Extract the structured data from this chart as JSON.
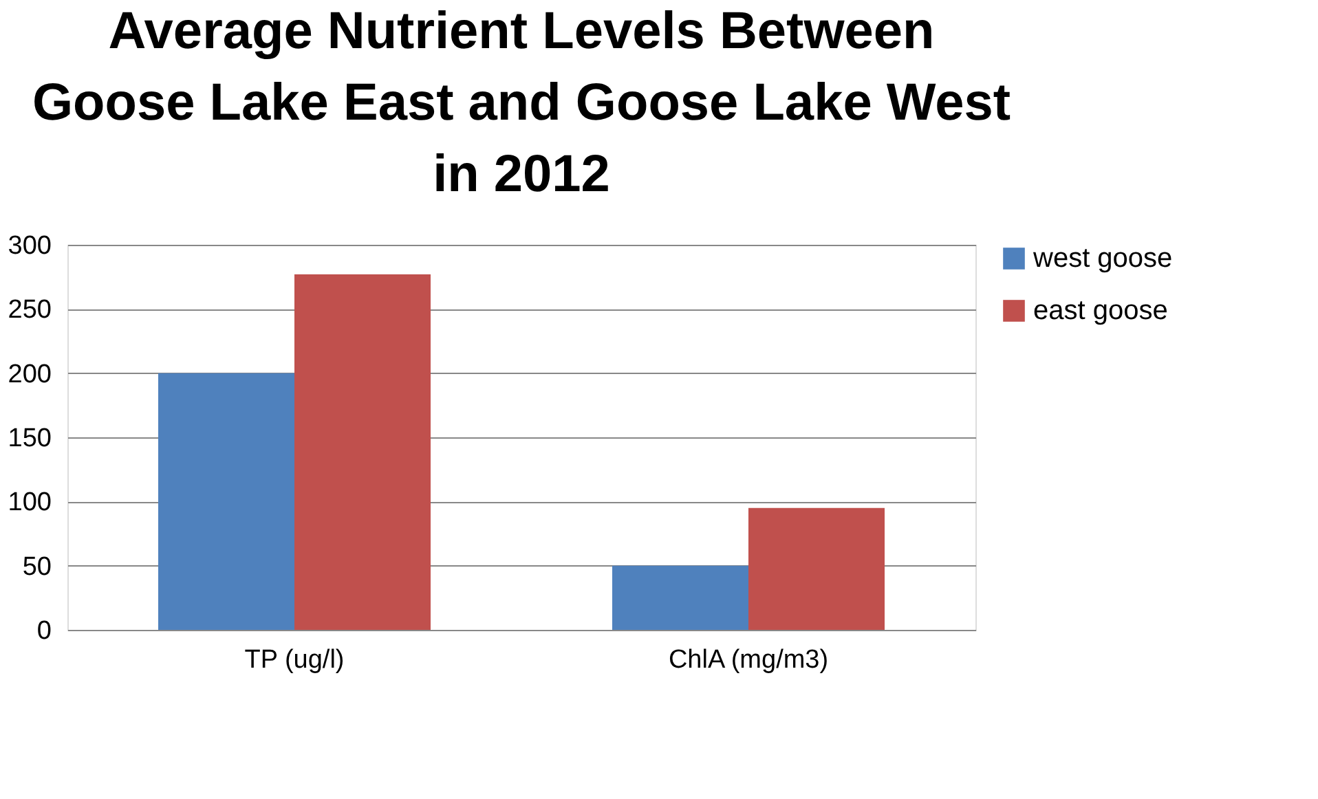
{
  "chart_data": {
    "type": "bar",
    "title": "Average Nutrient Levels Between Goose Lake East and Goose Lake West in 2012",
    "categories": [
      "TP (ug/l)",
      "ChlA (mg/m3)"
    ],
    "series": [
      {
        "name": "west goose",
        "color": "#4f81bd",
        "values": [
          200,
          50
        ]
      },
      {
        "name": "east goose",
        "color": "#c0504d",
        "values": [
          277,
          95
        ]
      }
    ],
    "ylim": [
      0,
      300
    ],
    "yticks": [
      0,
      50,
      100,
      150,
      200,
      250,
      300
    ],
    "grid": "y",
    "legend": "right"
  }
}
